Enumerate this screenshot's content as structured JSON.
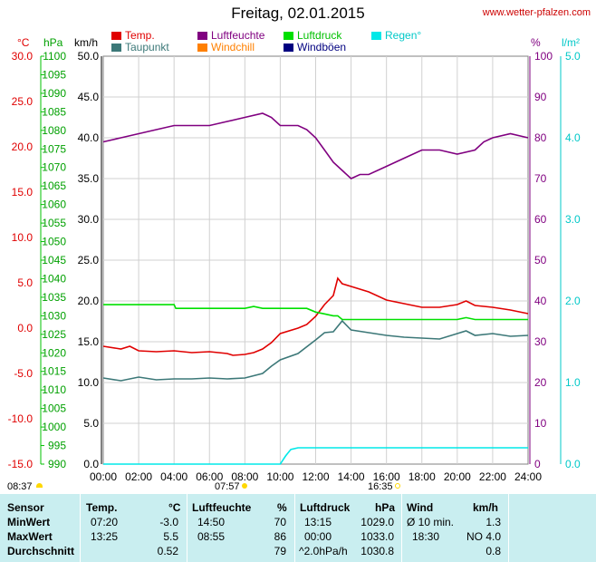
{
  "header": {
    "title": "Freitag, 02.01.2015",
    "site": "www.wetter-pfalzen.com"
  },
  "legend": [
    {
      "label": "Temp.",
      "color": "#e00000"
    },
    {
      "label": "Taupunkt",
      "color": "#3c7878"
    },
    {
      "label": "Luftfeuchte",
      "color": "#800080"
    },
    {
      "label": "Windchill",
      "color": "#ff8000"
    },
    {
      "label": "Luftdruck",
      "color": "#00e000"
    },
    {
      "label": "Windböen",
      "color": "#000080"
    },
    {
      "label": "Regen°",
      "color": "#00e8e8"
    }
  ],
  "units": {
    "temp": "°C",
    "pressure": "hPa",
    "wind": "km/h",
    "percent": "%",
    "rain": "l/m²"
  },
  "sun": {
    "sunrise": "08:37",
    "noon": "07:57",
    "sunset": "16:35"
  },
  "chart_data": {
    "type": "line",
    "xlabel": "",
    "x_ticks": [
      "00:00",
      "02:00",
      "04:00",
      "06:00",
      "08:00",
      "10:00",
      "12:00",
      "14:00",
      "16:00",
      "18:00",
      "20:00",
      "22:00",
      "24:00"
    ],
    "axes": {
      "temp": {
        "label": "°C",
        "ticks": [
          "30.0",
          "25.0",
          "20.0",
          "15.0",
          "10.0",
          "5.0",
          "0.0",
          "-5.0",
          "-10.0",
          "-15.0"
        ],
        "ylim": [
          -15,
          30
        ]
      },
      "pressure": {
        "label": "hPa",
        "ticks": [
          "1100",
          "1095",
          "1090",
          "1085",
          "1080",
          "1075",
          "1070",
          "1065",
          "1060",
          "1055",
          "1050",
          "1045",
          "1040",
          "1035",
          "1030",
          "1025",
          "1020",
          "1015",
          "1010",
          "1005",
          "1000",
          "995",
          "990"
        ],
        "ylim": [
          990,
          1100
        ]
      },
      "wind": {
        "label": "km/h",
        "ticks": [
          "50.0",
          "45.0",
          "40.0",
          "35.0",
          "30.0",
          "25.0",
          "20.0",
          "15.0",
          "10.0",
          "5.0",
          "0.0"
        ],
        "ylim": [
          0,
          50
        ]
      },
      "humidity": {
        "label": "%",
        "ticks": [
          "100",
          "90",
          "80",
          "70",
          "60",
          "50",
          "40",
          "30",
          "20",
          "10",
          "0"
        ],
        "ylim": [
          0,
          100
        ]
      },
      "rain": {
        "label": "l/m²",
        "ticks": [
          "5.0",
          "4.0",
          "3.0",
          "2.0",
          "1.0",
          "0.0"
        ],
        "ylim": [
          0,
          5
        ]
      }
    },
    "series": [
      {
        "name": "Temp.",
        "axis": "temp",
        "x": [
          0,
          1,
          1.5,
          2,
          3,
          4,
          5,
          6,
          7,
          7.33,
          8,
          8.5,
          9,
          9.5,
          10,
          11,
          11.5,
          12,
          12.5,
          13,
          13.25,
          13.5,
          14,
          15,
          16,
          17,
          18,
          19,
          20,
          20.5,
          21,
          22,
          23,
          24
        ],
        "y": [
          -2.0,
          -2.3,
          -2.0,
          -2.5,
          -2.6,
          -2.5,
          -2.7,
          -2.6,
          -2.8,
          -3.0,
          -2.9,
          -2.7,
          -2.3,
          -1.6,
          -0.6,
          0.0,
          0.4,
          1.3,
          2.6,
          3.6,
          5.5,
          4.9,
          4.6,
          4.0,
          3.1,
          2.7,
          2.3,
          2.3,
          2.6,
          3.0,
          2.5,
          2.3,
          2.0,
          1.6
        ]
      },
      {
        "name": "Taupunkt",
        "axis": "temp",
        "x": [
          0,
          1,
          2,
          3,
          4,
          5,
          6,
          7,
          8,
          9,
          9.5,
          10,
          11,
          12,
          12.5,
          13,
          13.5,
          14,
          15,
          16,
          17,
          18,
          19,
          20,
          20.5,
          21,
          22,
          23,
          24
        ],
        "y": [
          -5.5,
          -5.8,
          -5.4,
          -5.7,
          -5.6,
          -5.6,
          -5.5,
          -5.6,
          -5.5,
          -5.0,
          -4.2,
          -3.5,
          -2.8,
          -1.3,
          -0.5,
          -0.4,
          0.8,
          -0.2,
          -0.5,
          -0.8,
          -1.0,
          -1.1,
          -1.2,
          -0.6,
          -0.3,
          -0.8,
          -0.6,
          -0.9,
          -0.8
        ]
      },
      {
        "name": "Luftfeuchte",
        "axis": "humidity",
        "x": [
          0,
          1,
          2,
          3,
          4,
          5,
          6,
          7,
          8,
          9,
          9.5,
          10,
          11,
          11.5,
          12,
          12.5,
          13,
          13.5,
          14,
          14.5,
          15,
          16,
          17,
          18,
          19,
          20,
          21,
          21.5,
          22,
          23,
          24
        ],
        "y": [
          79,
          80,
          81,
          82,
          83,
          83,
          83,
          84,
          85,
          86,
          85,
          83,
          83,
          82,
          80,
          77,
          74,
          72,
          70,
          71,
          71,
          73,
          75,
          77,
          77,
          76,
          77,
          79,
          80,
          81,
          80
        ]
      },
      {
        "name": "Luftdruck",
        "axis": "pressure",
        "x": [
          0,
          4,
          4.1,
          8,
          8.5,
          9,
          11.5,
          12,
          12.5,
          13,
          13.25,
          13.5,
          14,
          16,
          18,
          20,
          20.5,
          21,
          22,
          24
        ],
        "y": [
          1033,
          1033,
          1032,
          1032,
          1032.5,
          1032,
          1032,
          1031,
          1030.5,
          1030,
          1030,
          1029,
          1029,
          1029,
          1029,
          1029,
          1029.5,
          1029,
          1029,
          1029
        ]
      },
      {
        "name": "Regen°",
        "axis": "rain",
        "x": [
          0,
          10,
          10.3,
          10.6,
          11,
          12,
          14,
          16,
          18,
          20,
          22,
          24
        ],
        "y": [
          0,
          0,
          0.1,
          0.18,
          0.2,
          0.2,
          0.2,
          0.2,
          0.2,
          0.2,
          0.2,
          0.2
        ]
      }
    ]
  },
  "table": {
    "headers": [
      "Sensor",
      "Temp.",
      "°C",
      "Luftfeuchte",
      "%",
      "Luftdruck",
      "hPa",
      "Wind",
      "km/h"
    ],
    "rows": [
      {
        "label": "MinWert",
        "temp_time": "07:20",
        "temp_val": "-3.0",
        "hum_time": "14:50",
        "hum_val": "70",
        "press_time": "13:15",
        "press_val": "1029.0",
        "wind_time": "Ø 10 min.",
        "wind_val": "1.3"
      },
      {
        "label": "MaxWert",
        "temp_time": "13:25",
        "temp_val": "5.5",
        "hum_time": "08:55",
        "hum_val": "86",
        "press_time": "00:00",
        "press_val": "1033.0",
        "wind_time": "18:30",
        "wind_val": "NO 4.0"
      },
      {
        "label": "Durchschnitt",
        "temp_time": "",
        "temp_val": "0.52",
        "hum_time": "",
        "hum_val": "79",
        "press_time": "^2.0hPa/h",
        "press_val": "1030.8",
        "wind_time": "",
        "wind_val": "0.8"
      }
    ]
  }
}
